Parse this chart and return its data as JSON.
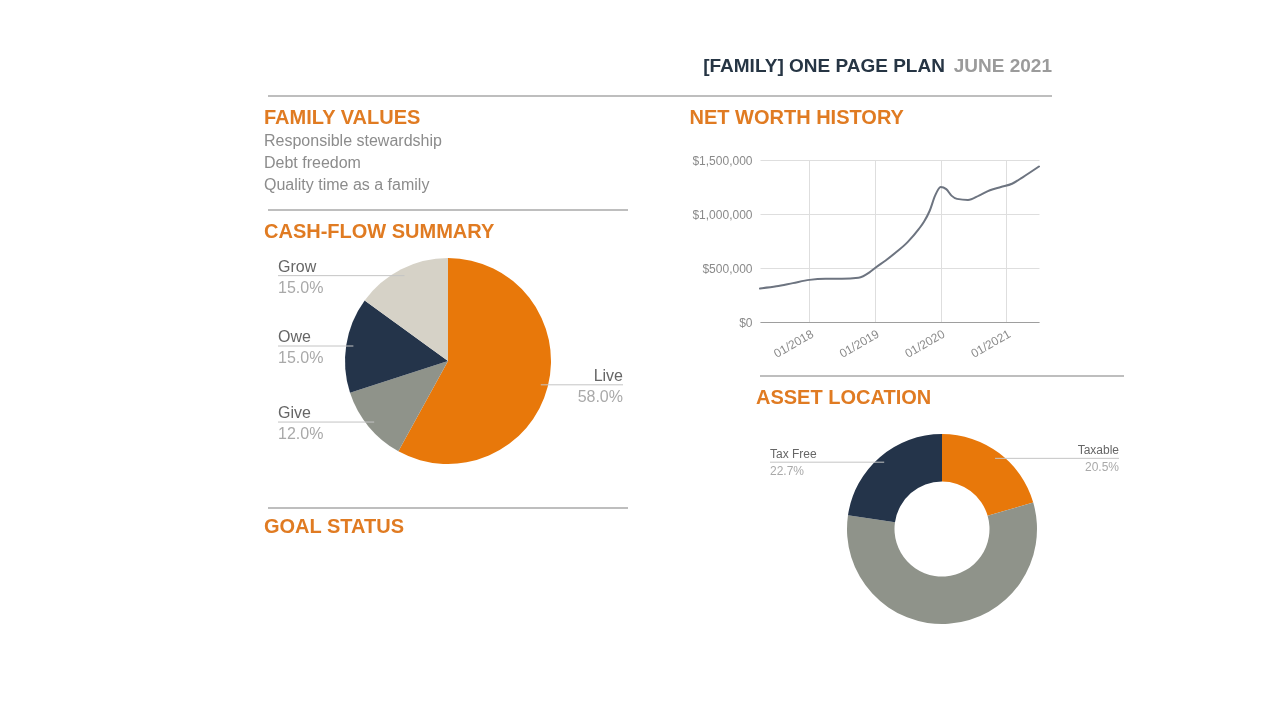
{
  "chart_data": [
    {
      "type": "other",
      "title": "[FAMILY] ONE PAGE PLAN",
      "subtitle": "JUNE 2021"
    },
    {
      "type": "other",
      "title": "FAMILY VALUES",
      "annotations": [
        "Responsible stewardship",
        "Debt freedom",
        "Quality time as a family"
      ]
    },
    {
      "type": "pie",
      "title": "CASH-FLOW SUMMARY",
      "categories": [
        "Live",
        "Give",
        "Owe",
        "Grow"
      ],
      "values": [
        58,
        12,
        15,
        15
      ],
      "colors": [
        "#e8780a",
        "#8f938a",
        "#24344a",
        "#d6d2c7"
      ],
      "value_labels": [
        "58.0%",
        "12.0%",
        "15.0%",
        "15.0%"
      ]
    },
    {
      "type": "other",
      "title": "GOAL STATUS"
    },
    {
      "type": "line",
      "title": "NET WORTH HISTORY",
      "x": [
        "2017-04",
        "2017-07",
        "2017-10",
        "2018-01",
        "2018-04",
        "2018-07",
        "2018-10",
        "2018-12",
        "2019-01",
        "2019-03",
        "2019-05",
        "2019-07",
        "2019-09",
        "2019-10",
        "2019-11",
        "2019-12",
        "2020-01",
        "2020-02",
        "2020-03",
        "2020-04",
        "2020-06",
        "2020-08",
        "2020-10",
        "2020-12",
        "2021-02",
        "2021-04",
        "2021-07"
      ],
      "series": [
        {
          "color": "#6d7480",
          "values": [
            310000,
            330000,
            360000,
            390000,
            400000,
            400000,
            410000,
            460000,
            500000,
            570000,
            650000,
            740000,
            860000,
            930000,
            1030000,
            1170000,
            1250000,
            1230000,
            1170000,
            1140000,
            1130000,
            1170000,
            1220000,
            1250000,
            1280000,
            1340000,
            1440000
          ]
        }
      ],
      "xlim": [
        "2017-04",
        "2021-07"
      ],
      "xticks": [
        {
          "value": "2018-01",
          "label": "01/2018"
        },
        {
          "value": "2019-01",
          "label": "01/2019"
        },
        {
          "value": "2020-01",
          "label": "01/2020"
        },
        {
          "value": "2021-01",
          "label": "01/2021"
        }
      ],
      "ylim": [
        0,
        1500000
      ],
      "yticks": [
        {
          "value": 0,
          "label": "$0"
        },
        {
          "value": 500000,
          "label": "$500,000"
        },
        {
          "value": 1000000,
          "label": "$1,000,000"
        },
        {
          "value": 1500000,
          "label": "$1,500,000"
        }
      ],
      "grid": true
    },
    {
      "type": "donut",
      "title": "ASSET LOCATION",
      "categories": [
        "Taxable",
        null,
        "Tax Free"
      ],
      "values": [
        20.5,
        56.8,
        22.7
      ],
      "colors": [
        "#e8780a",
        "#8f938a",
        "#24344a"
      ],
      "value_labels": [
        "20.5%",
        null,
        "22.7%"
      ]
    }
  ]
}
